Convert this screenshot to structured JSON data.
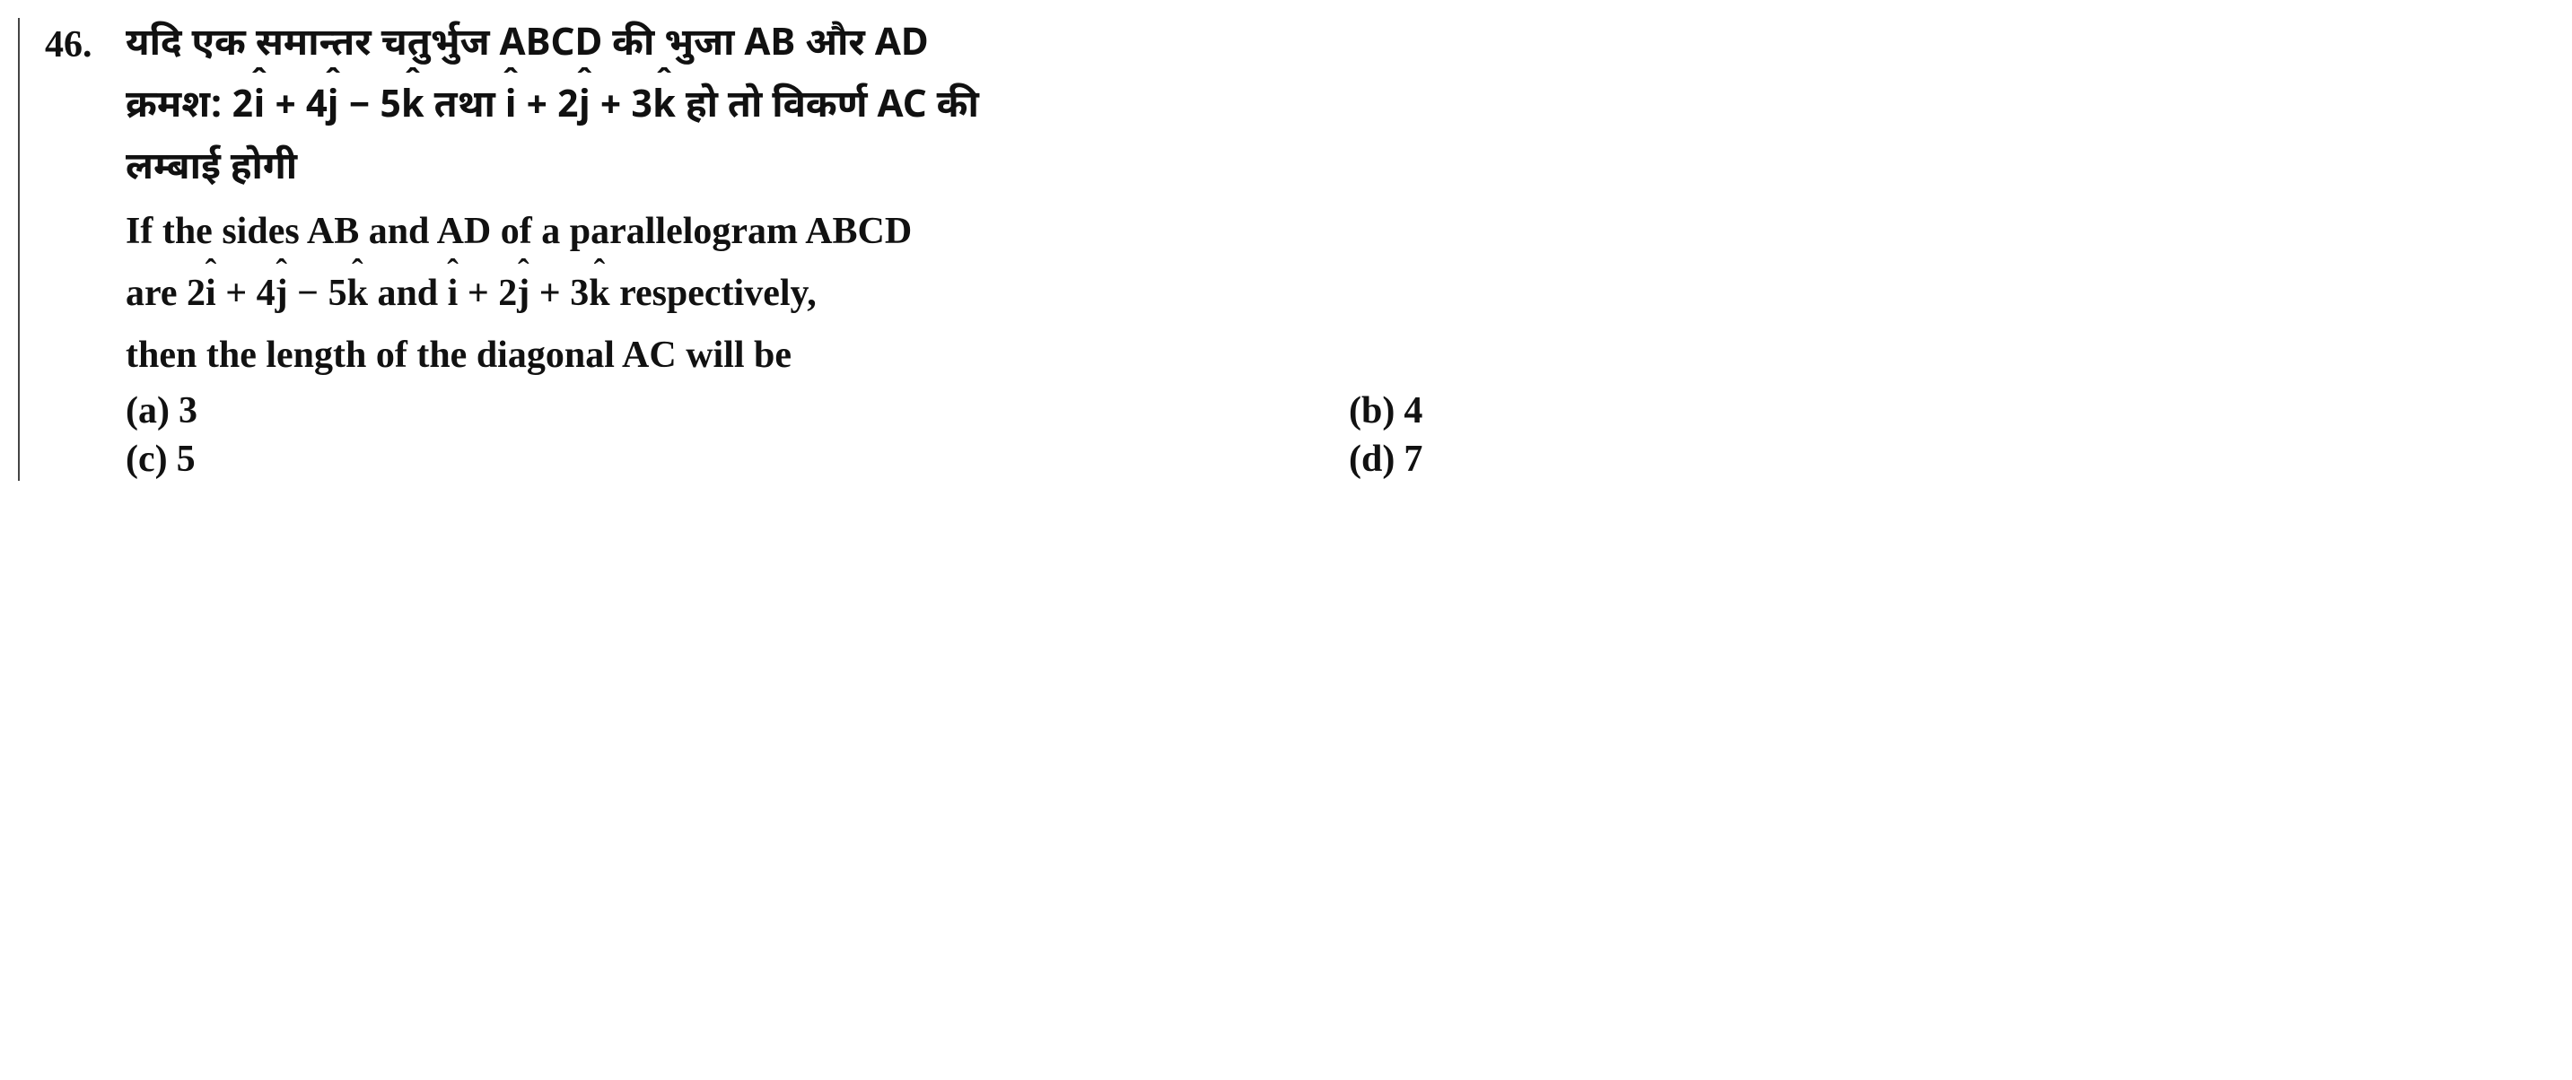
{
  "question": {
    "number": "46.",
    "hindi_line1": "यदि एक समान्तर चतुर्भुज ABCD की भुजा AB और AD",
    "hindi_line2_pre": "क्रमश: ",
    "hindi_line2_mid": " तथा ",
    "hindi_line2_post": " हो तो विकर्ण AC की",
    "hindi_line3": "लम्बाई होगी",
    "eng_line1": "If the sides AB and AD of a parallelogram ABCD",
    "eng_line2_pre": "are ",
    "eng_line2_mid": " and ",
    "eng_line2_post": " respectively,",
    "eng_line3": "then the length of the diagonal AC will be",
    "vec1": {
      "i_coef": "2",
      "j_sign": " + ",
      "j_coef": "4",
      "k_sign": " − ",
      "k_coef": "5"
    },
    "vec2": {
      "i_coef": "",
      "j_sign": " + ",
      "j_coef": "2",
      "k_sign": " + ",
      "k_coef": "3"
    },
    "options": {
      "a_label": "(a)",
      "a_val": "3",
      "b_label": "(b)",
      "b_val": "4",
      "c_label": "(c)",
      "c_val": "5",
      "d_label": "(d)",
      "d_val": "7"
    }
  }
}
